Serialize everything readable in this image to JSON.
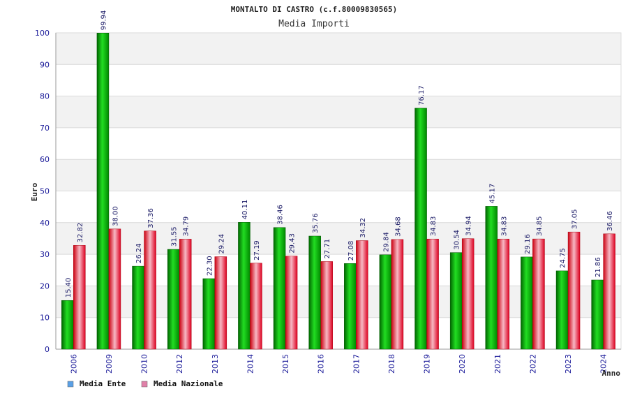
{
  "chart_data": {
    "type": "bar",
    "title": "MONTALTO DI CASTRO (c.f.80009830565)",
    "subtitle": "Media Importi",
    "xlabel": "Anno",
    "ylabel": "Euro",
    "ylim": [
      0,
      100
    ],
    "yticks": [
      0,
      10,
      20,
      30,
      40,
      50,
      60,
      70,
      80,
      90,
      100
    ],
    "grid": true,
    "legend_position": "bottom-left",
    "categories": [
      "2006",
      "2009",
      "2010",
      "2012",
      "2013",
      "2014",
      "2015",
      "2016",
      "2017",
      "2018",
      "2019",
      "2020",
      "2021",
      "2022",
      "2023",
      "2024"
    ],
    "series": [
      {
        "name": "Media Ente",
        "legend_color": "#5aa0e6",
        "bar_color": "#00b000",
        "values": [
          15.4,
          99.94,
          26.24,
          31.55,
          22.3,
          40.11,
          38.46,
          35.76,
          27.08,
          29.84,
          76.17,
          30.54,
          45.17,
          29.16,
          24.75,
          21.86
        ],
        "labels": [
          "15.40",
          "99.94",
          "26.24",
          "31.55",
          "22.30",
          "40.11",
          "38.46",
          "35.76",
          "27.08",
          "29.84",
          "76.17",
          "30.54",
          "45.17",
          "29.16",
          "24.75",
          "21.86"
        ]
      },
      {
        "name": "Media Nazionale",
        "legend_color": "#e080a8",
        "bar_color": "#e00020",
        "values": [
          32.82,
          38.0,
          37.36,
          34.79,
          29.24,
          27.19,
          29.43,
          27.71,
          34.32,
          34.68,
          34.83,
          34.94,
          34.83,
          34.85,
          37.05,
          36.46
        ],
        "labels": [
          "32.82",
          "38.00",
          "37.36",
          "34.79",
          "29.24",
          "27.19",
          "29.43",
          "27.71",
          "34.32",
          "34.68",
          "34.83",
          "34.94",
          "34.83",
          "34.85",
          "37.05",
          "36.46"
        ]
      }
    ]
  }
}
